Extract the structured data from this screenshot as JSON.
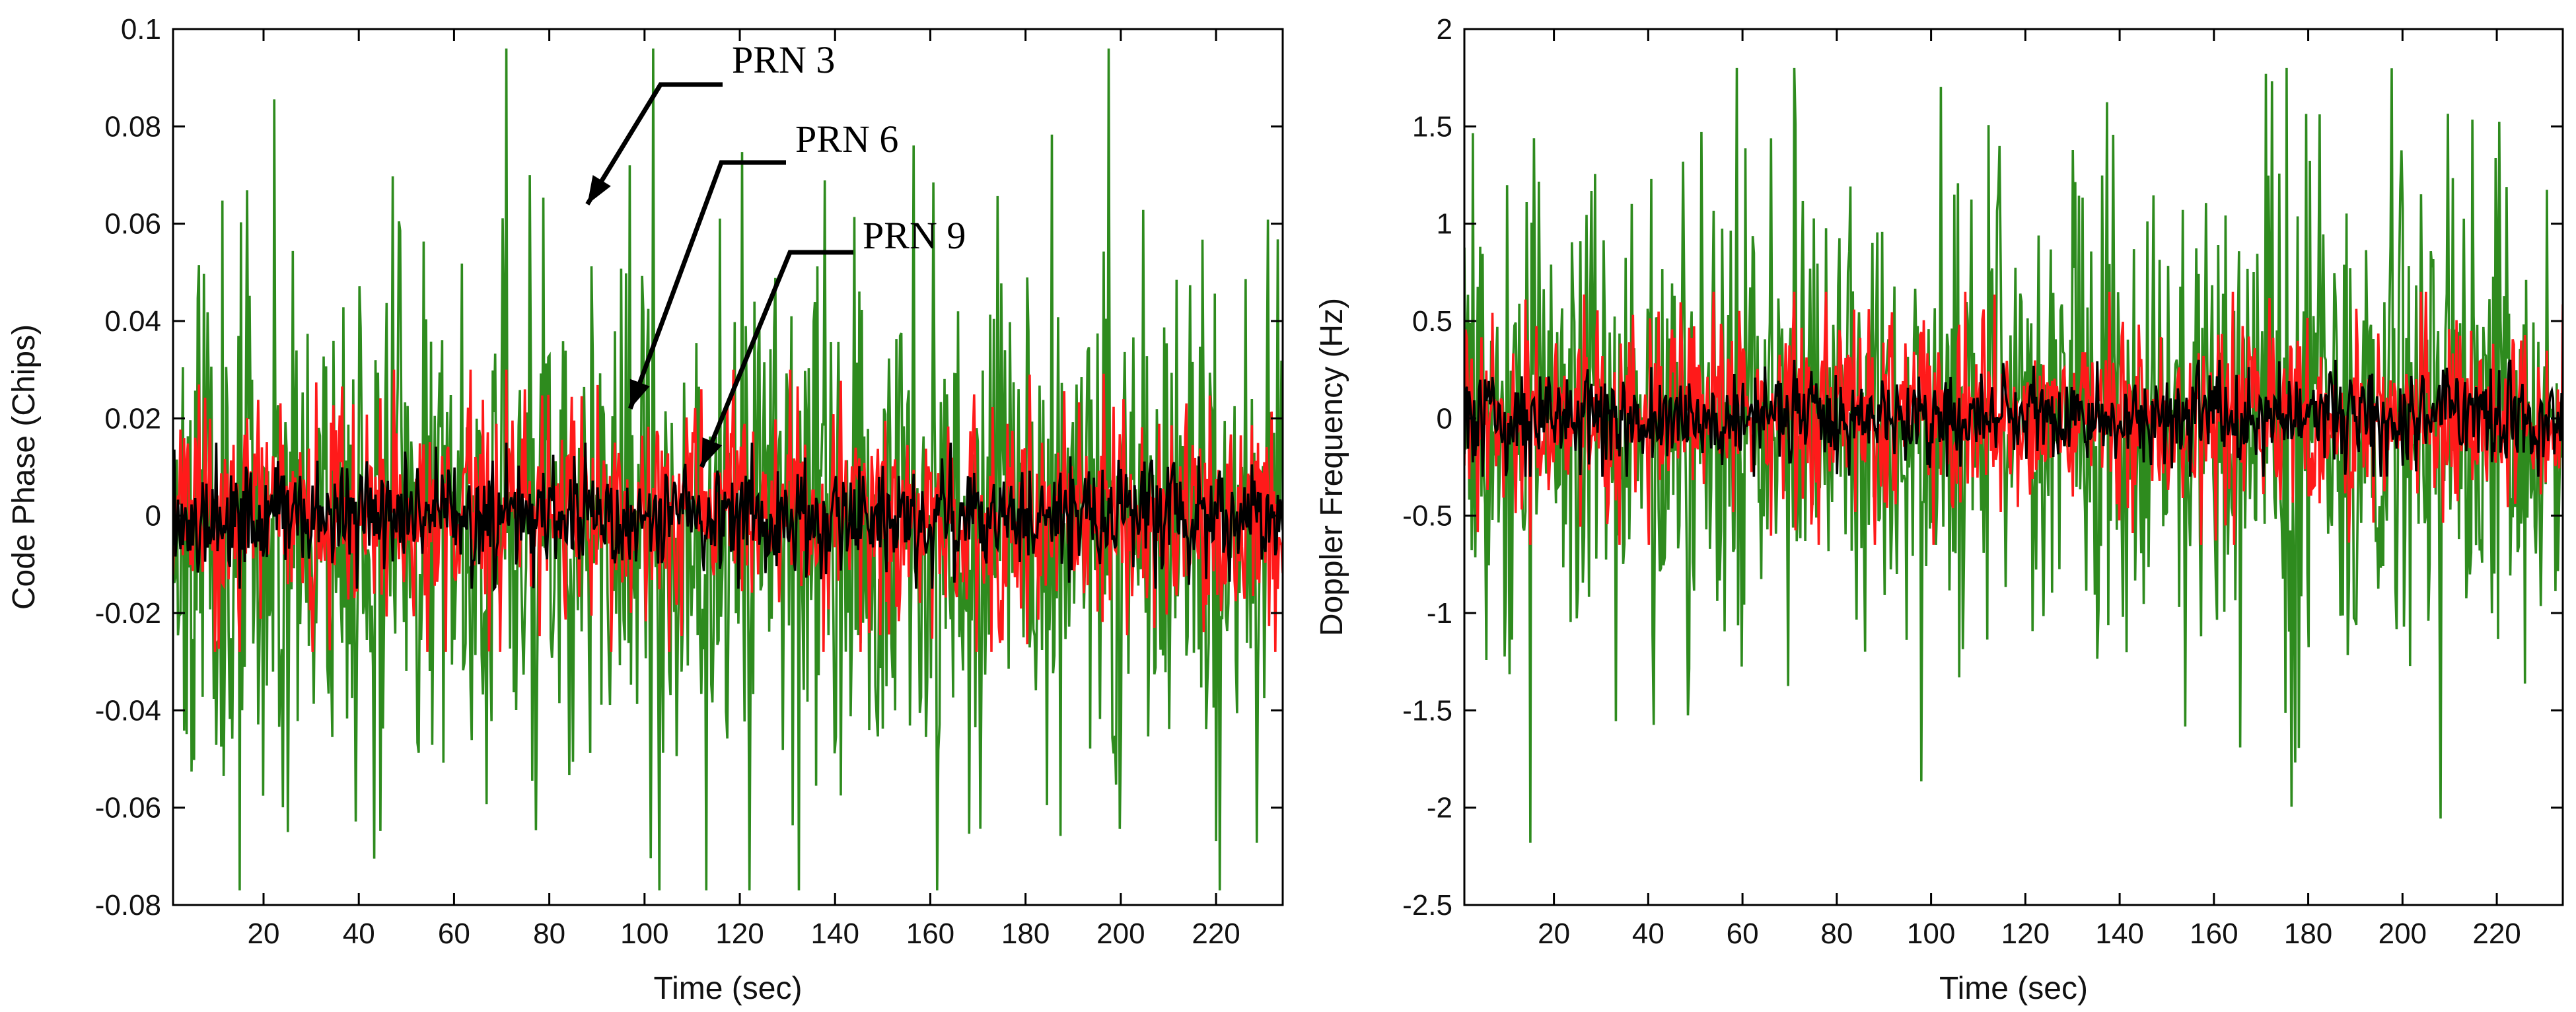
{
  "chart_data": [
    {
      "type": "line",
      "id": "code-phase",
      "title": "",
      "xlabel": "Time (sec)",
      "ylabel": "Code Phase (Chips)",
      "xlim": [
        1,
        234
      ],
      "ylim": [
        -0.08,
        0.1
      ],
      "xticks": [
        20,
        40,
        60,
        80,
        100,
        120,
        140,
        160,
        180,
        200,
        220
      ],
      "yticks": [
        -0.08,
        -0.06,
        -0.04,
        -0.02,
        0,
        0.02,
        0.04,
        0.06,
        0.08,
        0.1
      ],
      "ytick_labels": [
        "-0.08",
        "-0.06",
        "-0.04",
        "-0.02",
        "0",
        "0.02",
        "0.04",
        "0.06",
        "0.08",
        "0.1"
      ],
      "series": [
        {
          "name": "PRN 3",
          "color": "#2e8b1e",
          "amplitude": 0.028,
          "max": 0.096,
          "min": -0.077,
          "samples": 900,
          "seed": 11
        },
        {
          "name": "PRN 6",
          "color": "#ff1a1a",
          "amplitude": 0.011,
          "max": 0.03,
          "min": -0.028,
          "samples": 900,
          "seed": 23
        },
        {
          "name": "PRN 9",
          "color": "#000000",
          "amplitude": 0.0055,
          "max": 0.015,
          "min": -0.015,
          "samples": 900,
          "seed": 37
        }
      ],
      "annotations": [
        {
          "text": "PRN 3",
          "target_x": 88,
          "target_y": 0.064
        },
        {
          "text": "PRN 6",
          "target_x": 97,
          "target_y": 0.022
        },
        {
          "text": "PRN 9",
          "target_x": 112,
          "target_y": 0.01
        }
      ]
    },
    {
      "type": "line",
      "id": "doppler",
      "title": "",
      "xlabel": "Time (sec)",
      "ylabel": "Doppler Frequency (Hz)",
      "xlim": [
        1,
        234
      ],
      "ylim": [
        -2.5,
        2
      ],
      "xticks": [
        20,
        40,
        60,
        80,
        100,
        120,
        140,
        160,
        180,
        200,
        220
      ],
      "yticks": [
        -2.5,
        -2,
        -1.5,
        -1,
        -0.5,
        0,
        0.5,
        1,
        1.5,
        2
      ],
      "ytick_labels": [
        "-2.5",
        "-2",
        "-1.5",
        "-1",
        "-0.5",
        "0",
        "0.5",
        "1",
        "1.5",
        "2"
      ],
      "series": [
        {
          "name": "PRN 3",
          "color": "#2e8b1e",
          "amplitude": 0.62,
          "max": 1.8,
          "min": -2.18,
          "samples": 900,
          "seed": 53
        },
        {
          "name": "PRN 6",
          "color": "#ff1a1a",
          "amplitude": 0.24,
          "max": 0.65,
          "min": -0.65,
          "samples": 900,
          "seed": 67
        },
        {
          "name": "PRN 9",
          "color": "#000000",
          "amplitude": 0.12,
          "max": 0.3,
          "min": -0.3,
          "samples": 900,
          "seed": 79
        }
      ],
      "annotations": []
    }
  ]
}
